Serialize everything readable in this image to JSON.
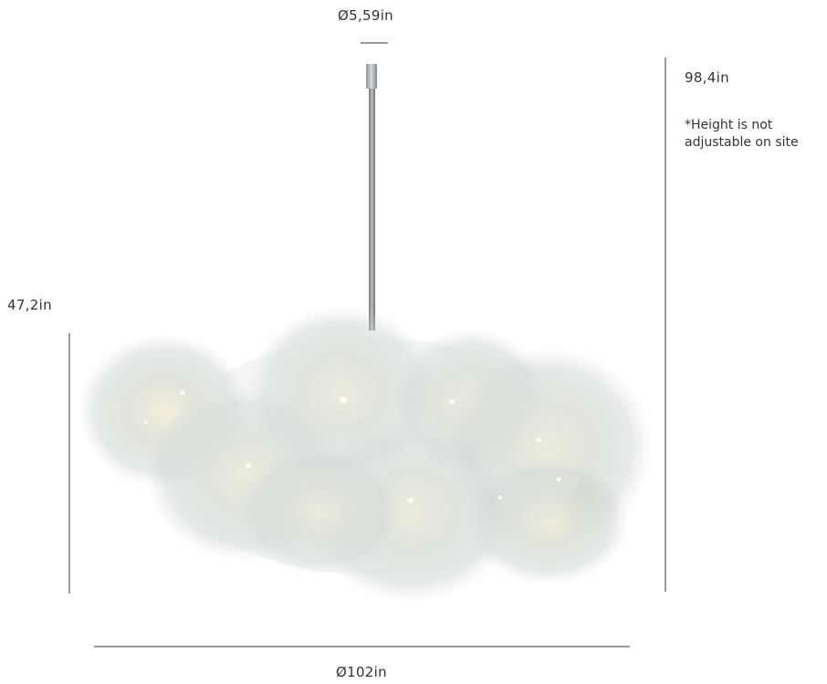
{
  "dimensions": {
    "canopy_diameter": "Ø5,59in",
    "total_height": "98,4in",
    "height_note": "*Height is not adjustable on site",
    "body_height": "47,2in",
    "body_diameter": "Ø102in"
  }
}
